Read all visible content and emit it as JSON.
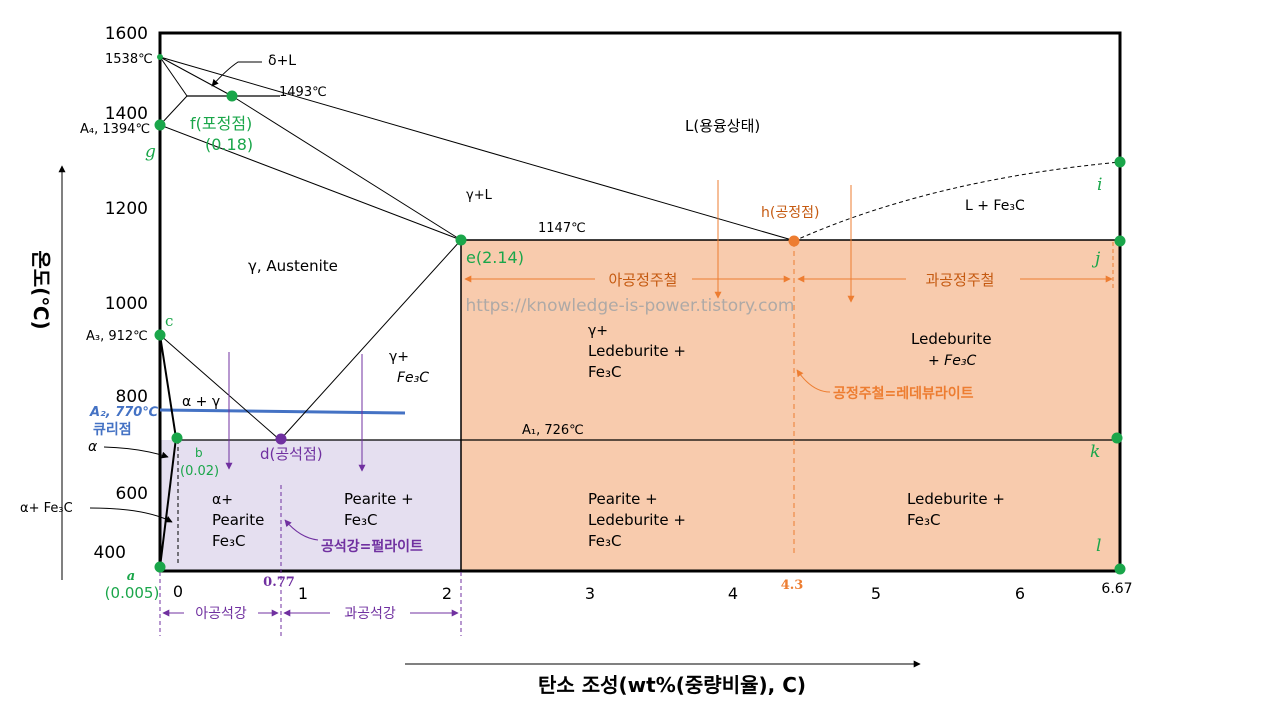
{
  "axes": {
    "y_ticks": [
      "1600",
      "1400",
      "1200",
      "1000",
      "800",
      "600",
      "400"
    ],
    "x_ticks": [
      "0",
      "1",
      "2",
      "3",
      "4",
      "5",
      "6"
    ],
    "x_end_label": "6.67",
    "x_eutectoid_label": "0.77",
    "x_eutectic_label": "4.3",
    "ylabel": "온도(℃)",
    "xlabel": "탄소 조성(wt%(중량비율), C)"
  },
  "temps": {
    "t1538": "1538℃",
    "t1493": "1493℃",
    "a4": "A₄, 1394℃",
    "t1147": "1147℃",
    "a3": "A₃, 912℃",
    "a2": "A₂, 770℃",
    "curie": "큐리점",
    "a1": "A₁, 726℃"
  },
  "points": {
    "f_label": "f(포정점)",
    "f_value": "(0.18)",
    "g": "g",
    "c": "c",
    "e": "e(2.14)",
    "h": "h(공정점)",
    "i": "i",
    "j": "j",
    "k": "k",
    "l": "l",
    "b": "b",
    "b_value": "(0.02)",
    "d": "d(공석점)",
    "a_letter": "a",
    "a_value": "(0.005)"
  },
  "regions": {
    "delta_l": "δ+L",
    "liquid": "L(용융상태)",
    "gamma_l": "γ+L",
    "l_fe3c": "L + Fe₃C",
    "austenite": "γ, Austenite",
    "gamma_fe3c_1": "γ+",
    "gamma_fe3c_2": "Fe₃C",
    "gamma_led_1": "γ+",
    "gamma_led_2": "Ledeburite +",
    "gamma_led_3": "Fe₃C",
    "led_fe3c_1": "Ledeburite",
    "led_fe3c_2": "+ Fe₃C",
    "alpha_gamma": "α + γ",
    "alpha": "α",
    "alpha_fe3c": "α+ Fe₃C",
    "ap_1": "α+",
    "ap_2": "Pearite",
    "ap_3": "Fe₃C",
    "pf_1": "Pearite +",
    "pf_2": "Fe₃C",
    "plf_1": "Pearite +",
    "plf_2": "Ledeburite +",
    "plf_3": "Fe₃C",
    "lf_1": "Ledeburite +",
    "lf_2": "Fe₃C"
  },
  "annotations": {
    "hypoeutectic": "아공정주철",
    "hypereutectic": "과공정주철",
    "eutectic_note": "공정주철=레데뷰라이트",
    "eutectoid_note": "공석강=펄라이트",
    "hypoeutectoid": "아공석강",
    "hypereutectoid": "과공석강",
    "watermark": "https://knowledge-is-power.tistory.com"
  },
  "colors": {
    "green": "#1aa64a",
    "orange": "#ed7d31",
    "orange_fill": "#f8cbad",
    "purple": "#7030a0",
    "purple_fill": "#e5dff0",
    "blue": "#4472c4",
    "dark_orange_text": "#c55a11"
  }
}
